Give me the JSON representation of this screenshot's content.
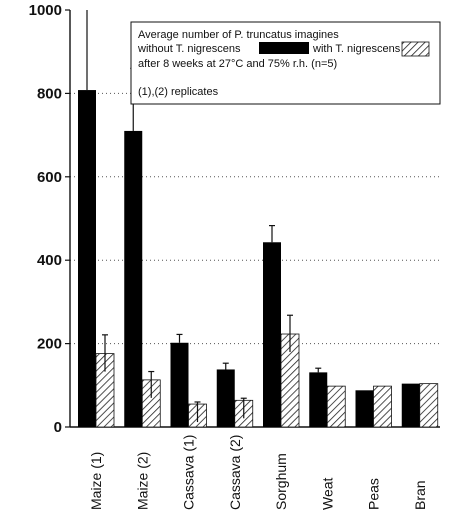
{
  "chart_data": {
    "type": "bar",
    "categories": [
      "Maize (1)",
      "Maize (2)",
      "Cassava (1)",
      "Cassava (2)",
      "Sorghum",
      "Weat",
      "Peas",
      "Bran"
    ],
    "series": [
      {
        "name": "without T. nigrescens",
        "values": [
          808,
          710,
          202,
          138,
          443,
          131,
          88,
          104
        ],
        "errors": [
          260,
          150,
          20,
          15,
          40,
          10,
          null,
          null
        ]
      },
      {
        "name": "with T. nigrescens",
        "values": [
          176,
          113,
          55,
          64,
          223,
          98,
          98,
          104
        ],
        "errors": [
          45,
          20,
          5,
          5,
          45,
          null,
          null,
          null
        ]
      }
    ],
    "ylim": [
      0,
      1000
    ],
    "yticks": [
      "0",
      "200",
      "400",
      "600",
      "800",
      "1000"
    ],
    "grid": "dotted horizontal",
    "legend": {
      "placement": "top-right",
      "line1": "Average number of P. truncatus imagines",
      "without_label": "without T. nigrescens",
      "with_label": "with T. nigrescens",
      "line3": "after 8 weeks at 27°C and 75% r.h. (n=5)",
      "note": "(1),(2) replicates"
    },
    "colors": {
      "without": "#000000",
      "with": "#ffffff",
      "hatch": "#222222"
    }
  }
}
